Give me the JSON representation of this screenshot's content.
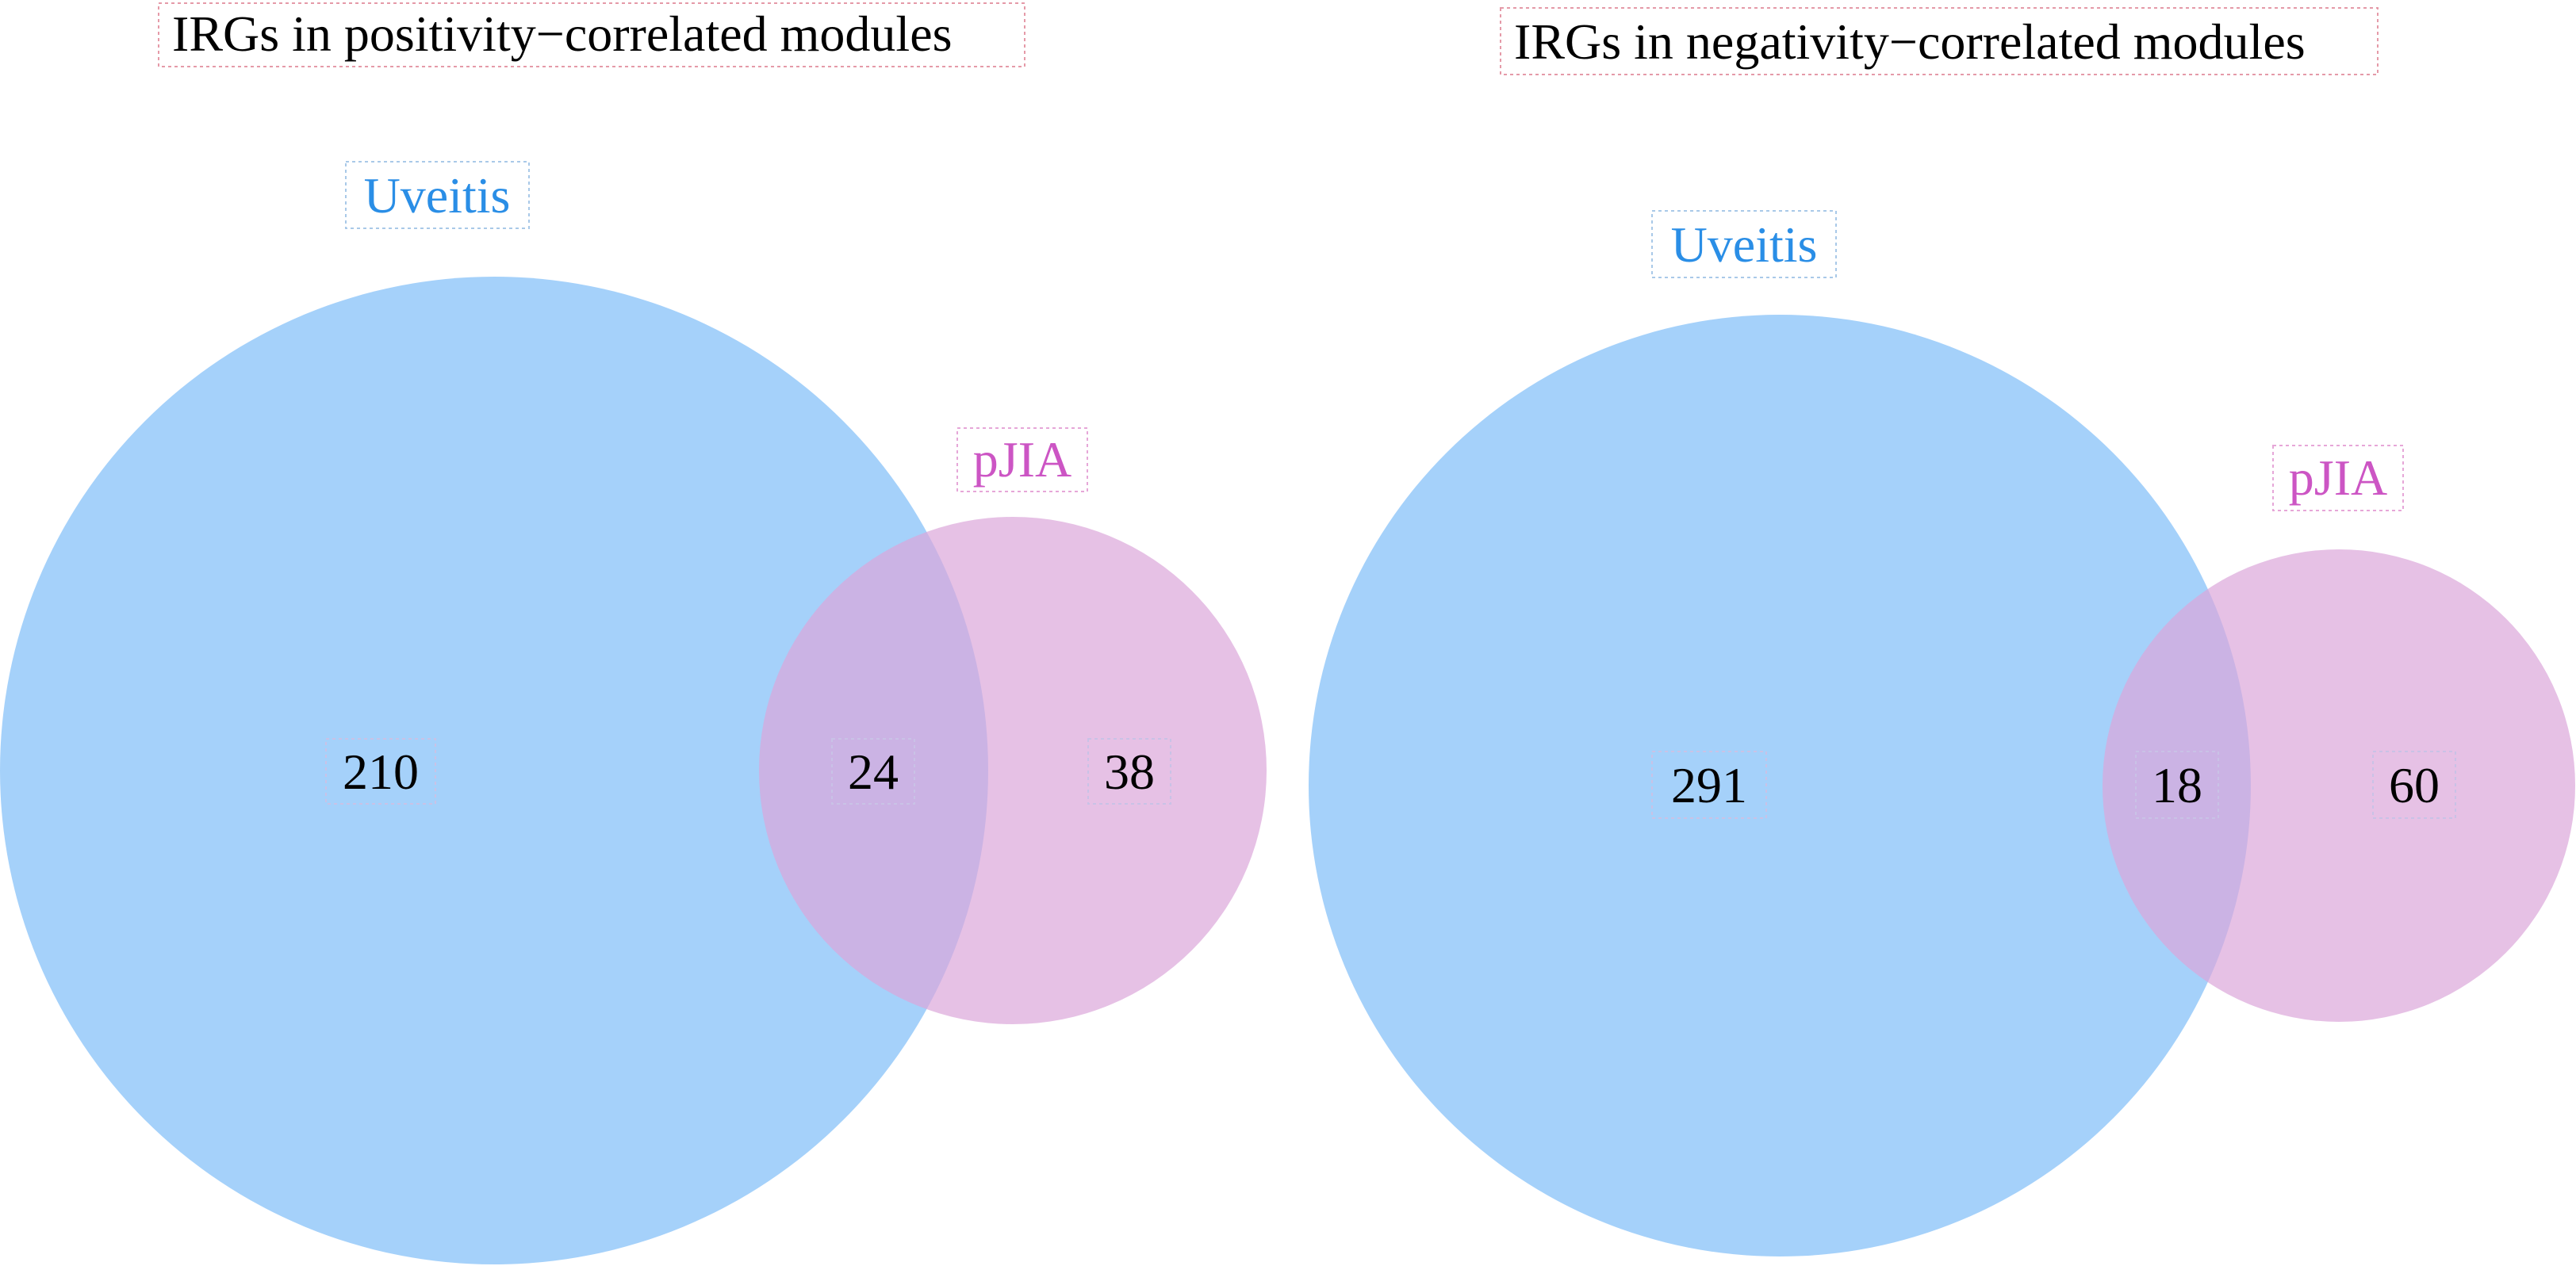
{
  "colors": {
    "uveitis": "#8cc4f9",
    "pjia": "#e2b2e0",
    "uveitis_label": "#2a8ee6",
    "pjia_label": "#cc55c4"
  },
  "diagrams": [
    {
      "title": "IRGs in positivity−correlated modules",
      "set_a_label": "Uveitis",
      "set_b_label": "pJIA",
      "only_a": "210",
      "both": "24",
      "only_b": "38"
    },
    {
      "title": "IRGs in negativity−correlated modules",
      "set_a_label": "Uveitis",
      "set_b_label": "pJIA",
      "only_a": "291",
      "both": "18",
      "only_b": "60"
    }
  ]
}
